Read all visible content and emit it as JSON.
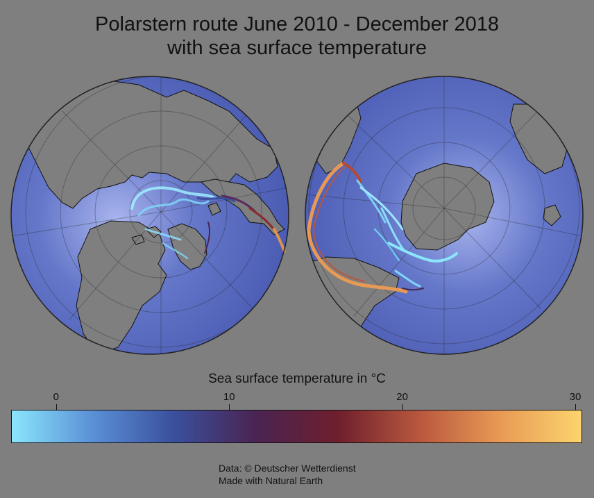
{
  "title": {
    "line1": "Polarstern route June 2010 - December 2018",
    "line2": "with sea surface temperature"
  },
  "colorbar": {
    "label": "Sea surface temperature in °C",
    "ticks": [
      "0",
      "10",
      "20",
      "30"
    ],
    "tick_values": [
      0,
      10,
      20,
      30
    ],
    "range": [
      -2.6,
      30.4
    ],
    "stops": [
      "#8ae6fb",
      "#5a8fd6",
      "#3a4f9c",
      "#4a2452",
      "#6e1f2c",
      "#b8573e",
      "#e89a55",
      "#fcd46d"
    ]
  },
  "colors": {
    "background": "#7f7f7f",
    "ocean": "#4f63b8",
    "ocean_highlight": "#8d9de6",
    "land": "#7f7f7f"
  },
  "globes": [
    {
      "name": "northern-hemisphere",
      "pole": "north"
    },
    {
      "name": "southern-hemisphere",
      "pole": "south"
    }
  ],
  "credits": {
    "line1": "Data: © Deutscher Wetterdienst",
    "line2": "Made with Natural Earth"
  }
}
